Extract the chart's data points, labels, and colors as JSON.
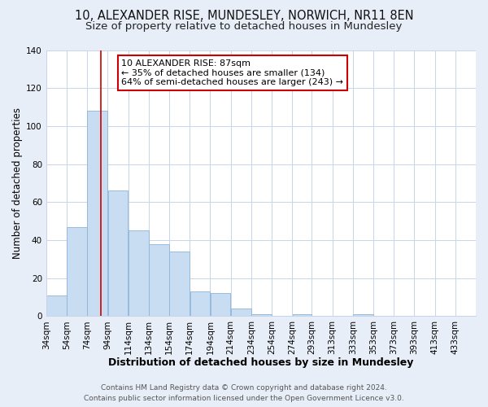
{
  "title1": "10, ALEXANDER RISE, MUNDESLEY, NORWICH, NR11 8EN",
  "title2": "Size of property relative to detached houses in Mundesley",
  "xlabel": "Distribution of detached houses by size in Mundesley",
  "ylabel": "Number of detached properties",
  "bar_values": [
    11,
    47,
    108,
    66,
    45,
    38,
    34,
    13,
    12,
    4,
    1,
    0,
    1,
    0,
    0,
    1
  ],
  "bin_edges": [
    34,
    54,
    74,
    94,
    114,
    134,
    154,
    174,
    194,
    214,
    234,
    254,
    274,
    293,
    313,
    333,
    353
  ],
  "all_tick_positions": [
    34,
    54,
    74,
    94,
    114,
    134,
    154,
    174,
    194,
    214,
    234,
    254,
    274,
    293,
    313,
    333,
    353,
    373,
    393,
    413,
    433
  ],
  "tick_labels": [
    "34sqm",
    "54sqm",
    "74sqm",
    "94sqm",
    "114sqm",
    "134sqm",
    "154sqm",
    "174sqm",
    "194sqm",
    "214sqm",
    "234sqm",
    "254sqm",
    "274sqm",
    "293sqm",
    "313sqm",
    "333sqm",
    "353sqm",
    "373sqm",
    "393sqm",
    "413sqm",
    "433sqm"
  ],
  "xlim_right": 453,
  "bar_color": "#c9ddf2",
  "bar_edge_color": "#8cb4d8",
  "grid_color": "#c8d4e8",
  "fig_background_color": "#e8eef8",
  "plot_background_color": "#ffffff",
  "vline_x": 87,
  "vline_color": "#cc0000",
  "annotation_title": "10 ALEXANDER RISE: 87sqm",
  "annotation_line1": "← 35% of detached houses are smaller (134)",
  "annotation_line2": "64% of semi-detached houses are larger (243) →",
  "annotation_box_facecolor": "#ffffff",
  "annotation_border_color": "#cc0000",
  "ylim": [
    0,
    140
  ],
  "yticks": [
    0,
    20,
    40,
    60,
    80,
    100,
    120,
    140
  ],
  "footer1": "Contains HM Land Registry data © Crown copyright and database right 2024.",
  "footer2": "Contains public sector information licensed under the Open Government Licence v3.0.",
  "title1_fontsize": 10.5,
  "title2_fontsize": 9.5,
  "xlabel_fontsize": 9,
  "ylabel_fontsize": 8.5,
  "tick_fontsize": 7.5,
  "footer_fontsize": 6.5,
  "annotation_fontsize": 8
}
